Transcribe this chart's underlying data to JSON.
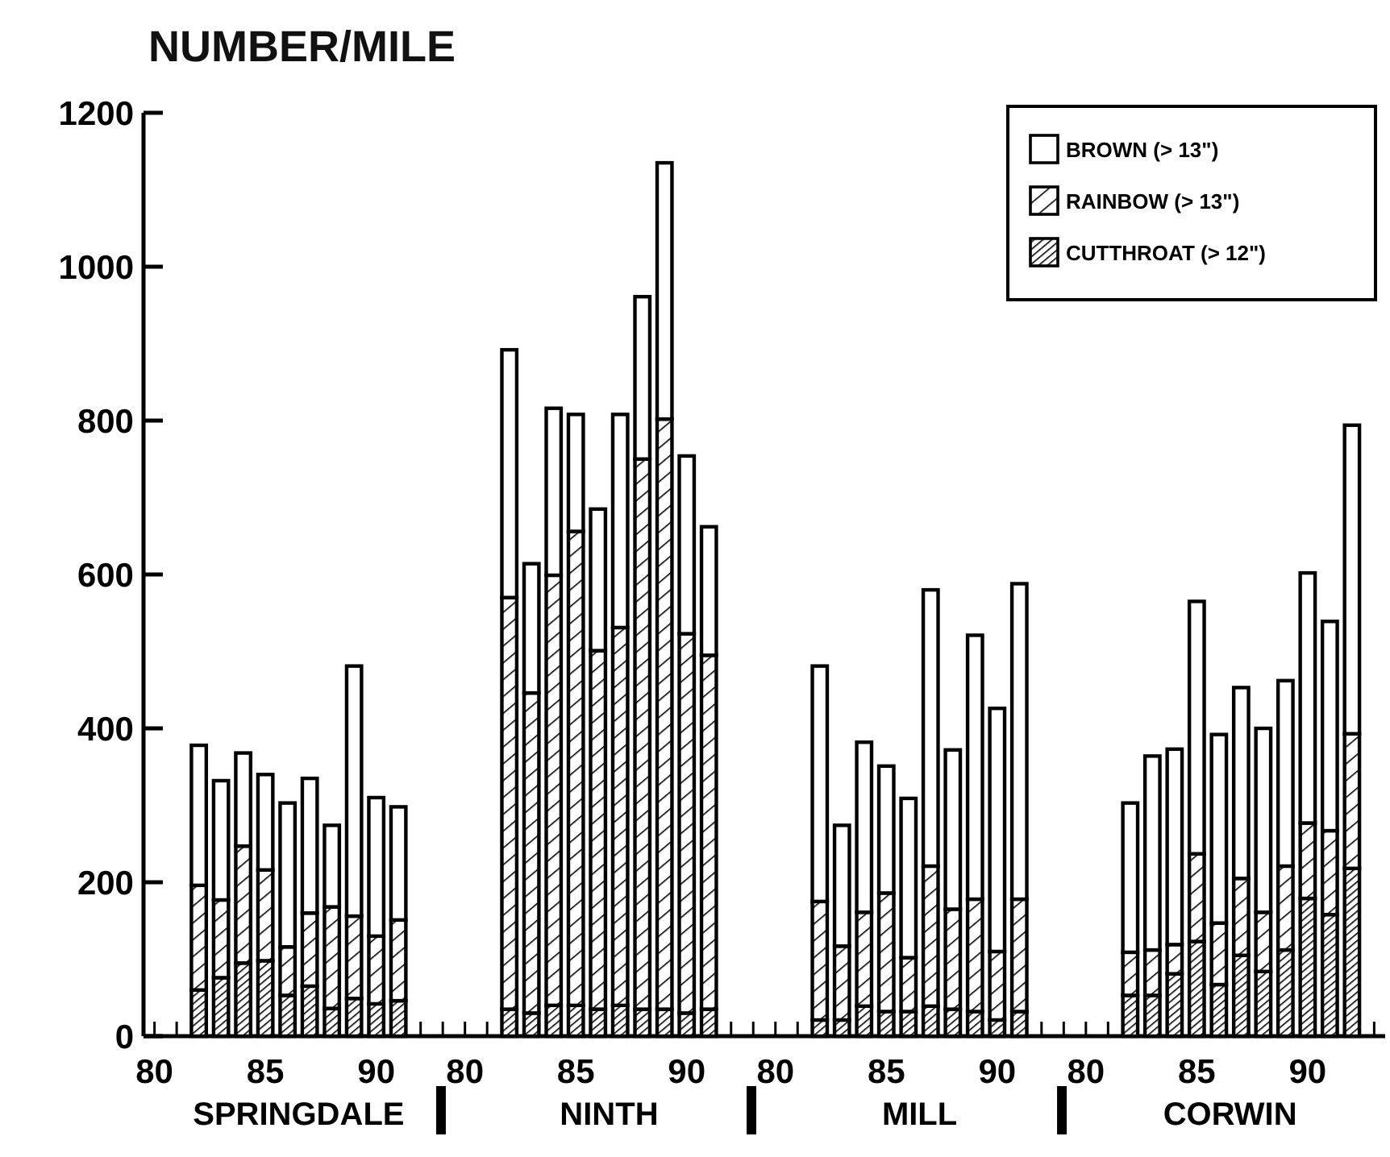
{
  "chart_data": {
    "type": "bar",
    "stacked": true,
    "ylabel": "NUMBER/MILE",
    "categories": [
      "80",
      null,
      null,
      null,
      null,
      "85",
      null,
      null,
      null,
      null,
      "90",
      null,
      null,
      null,
      "80",
      null,
      null,
      null,
      null,
      "85",
      null,
      null,
      null,
      null,
      "90",
      null,
      null,
      null,
      "80",
      null,
      null,
      null,
      null,
      "85",
      null,
      null,
      null,
      null,
      "90",
      null,
      null,
      null,
      "80",
      null,
      null,
      null,
      null,
      "85",
      null,
      null,
      null,
      null,
      "90",
      null,
      null,
      null
    ],
    "series": [
      {
        "name": "CUTTHROAT (> 12\")",
        "color": "#000000",
        "values": [
          null,
          null,
          60,
          76,
          95,
          98,
          53,
          65,
          36,
          49,
          42,
          46,
          null,
          null,
          null,
          null,
          35,
          30,
          40,
          40,
          35,
          40,
          35,
          35,
          30,
          35,
          null,
          null,
          null,
          null,
          21,
          21,
          39,
          32,
          32,
          39,
          35,
          32,
          21,
          32,
          null,
          null,
          null,
          null,
          53,
          53,
          81,
          123,
          67,
          105,
          84,
          112,
          179,
          158,
          218,
          null
        ]
      },
      {
        "name": "RAINBOW (> 13\")",
        "color": "#000000",
        "values": [
          null,
          null,
          136,
          101,
          152,
          118,
          63,
          95,
          132,
          107,
          88,
          105,
          null,
          null,
          null,
          null,
          535,
          416,
          559,
          616,
          466,
          491,
          715,
          767,
          493,
          460,
          null,
          null,
          null,
          null,
          154,
          96,
          122,
          154,
          70,
          182,
          130,
          146,
          89,
          146,
          null,
          null,
          null,
          null,
          56,
          59,
          38,
          114,
          80,
          100,
          77,
          109,
          98,
          109,
          175,
          null
        ]
      },
      {
        "name": "BROWN (> 13\")",
        "color": "#ffffff",
        "values": [
          null,
          null,
          182,
          155,
          121,
          124,
          187,
          175,
          106,
          325,
          180,
          147,
          null,
          null,
          null,
          null,
          322,
          168,
          217,
          152,
          184,
          277,
          211,
          333,
          231,
          167,
          null,
          null,
          null,
          null,
          306,
          157,
          221,
          165,
          207,
          359,
          207,
          343,
          316,
          410,
          null,
          null,
          null,
          null,
          194,
          252,
          254,
          328,
          245,
          248,
          239,
          241,
          325,
          272,
          401,
          null
        ]
      }
    ],
    "ylim": [
      0,
      1200
    ],
    "yticks": [
      0,
      200,
      400,
      600,
      800,
      1000,
      1200
    ],
    "annotations": [
      "SPRINGDALE",
      "NINTH",
      "MILL",
      "CORWIN"
    ],
    "legend": "top right"
  }
}
